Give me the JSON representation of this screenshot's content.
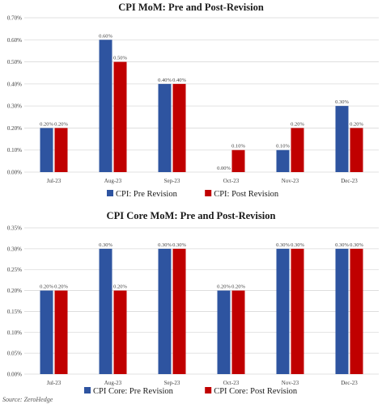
{
  "colors": {
    "pre": "#2e54a0",
    "post": "#c00000",
    "grid": "#d9d9d9",
    "text": "#404040"
  },
  "source": "Source: ZeroHedge",
  "chart_data": [
    {
      "type": "bar",
      "title": "CPI MoM: Pre and Post-Revision",
      "categories": [
        "Jul-23",
        "Aug-23",
        "Sep-23",
        "Oct-23",
        "Nov-23",
        "Dec-23"
      ],
      "series": [
        {
          "name": "CPI: Pre Revision",
          "values": [
            0.2,
            0.6,
            0.4,
            0.0,
            0.1,
            0.3
          ],
          "labels": [
            "0.20%",
            "0.60%",
            "0.40%",
            "0.00%",
            "0.10%",
            "0.30%"
          ]
        },
        {
          "name": "CPI: Post Revision",
          "values": [
            0.2,
            0.5,
            0.4,
            0.1,
            0.2,
            0.2
          ],
          "labels": [
            "0.20%",
            "0.50%",
            "0.40%",
            "0.10%",
            "0.20%",
            "0.20%"
          ]
        }
      ],
      "yticks": [
        "0.00%",
        "0.10%",
        "0.20%",
        "0.30%",
        "0.40%",
        "0.50%",
        "0.60%",
        "0.70%"
      ],
      "ylim": [
        0,
        0.7
      ],
      "grid": true,
      "legend": "bottom"
    },
    {
      "type": "bar",
      "title": "CPI Core MoM: Pre and Post-Revision",
      "categories": [
        "Jul-23",
        "Aug-23",
        "Sep-23",
        "Oct-23",
        "Nov-23",
        "Dec-23"
      ],
      "series": [
        {
          "name": "CPI Core: Pre Revision",
          "values": [
            0.2,
            0.3,
            0.3,
            0.2,
            0.3,
            0.3
          ],
          "labels": [
            "0.20%",
            "0.30%",
            "0.30%",
            "0.20%",
            "0.30%",
            "0.30%"
          ]
        },
        {
          "name": "CPI Core: Post Revision",
          "values": [
            0.2,
            0.2,
            0.3,
            0.2,
            0.3,
            0.3
          ],
          "labels": [
            "0.20%",
            "0.20%",
            "0.30%",
            "0.20%",
            "0.30%",
            "0.30%"
          ]
        }
      ],
      "yticks": [
        "0.00%",
        "0.05%",
        "0.10%",
        "0.15%",
        "0.20%",
        "0.25%",
        "0.30%",
        "0.35%"
      ],
      "ylim": [
        0,
        0.35
      ],
      "grid": true,
      "legend": "bottom"
    }
  ]
}
